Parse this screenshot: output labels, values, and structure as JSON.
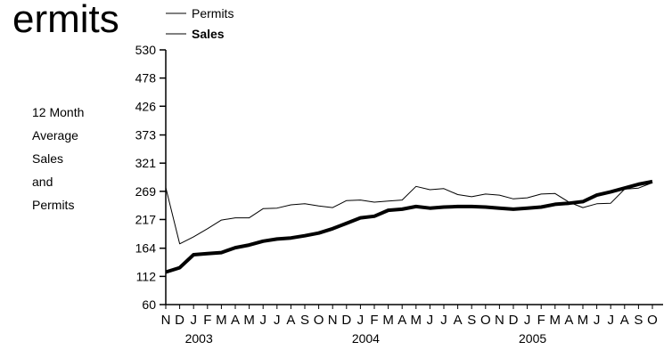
{
  "chart_data": {
    "type": "line",
    "title": "ermits",
    "ylabel": [
      "12 Month",
      "Average",
      "Sales",
      "and",
      "Permits"
    ],
    "ylim": [
      60,
      530
    ],
    "yticks": [
      60,
      112,
      164,
      217,
      269,
      321,
      373,
      426,
      478,
      530
    ],
    "categories": [
      "N",
      "D",
      "J",
      "F",
      "M",
      "A",
      "M",
      "J",
      "J",
      "A",
      "S",
      "O",
      "N",
      "D",
      "J",
      "F",
      "M",
      "A",
      "M",
      "J",
      "J",
      "A",
      "S",
      "O",
      "N",
      "D",
      "J",
      "F",
      "M",
      "A",
      "M",
      "J",
      "J",
      "A",
      "S",
      "O"
    ],
    "year_labels": [
      {
        "label": "2003",
        "index": 2
      },
      {
        "label": "2004",
        "index": 14
      },
      {
        "label": "2005",
        "index": 26
      }
    ],
    "legend": [
      {
        "name": "Permits",
        "bold": false
      },
      {
        "name": "Sales",
        "bold": true
      }
    ],
    "grid": false,
    "series": [
      {
        "name": "Permits",
        "color": "#000000",
        "values": [
          276,
          172,
          185,
          200,
          216,
          220,
          220,
          237,
          238,
          244,
          246,
          242,
          239,
          252,
          253,
          249,
          251,
          253,
          278,
          272,
          274,
          263,
          259,
          264,
          262,
          255,
          257,
          264,
          265,
          249,
          239,
          246,
          247,
          273,
          275,
          285
        ]
      },
      {
        "name": "Sales",
        "color": "#000000",
        "values": [
          120,
          128,
          152,
          154,
          156,
          165,
          170,
          177,
          181,
          183,
          187,
          192,
          200,
          210,
          220,
          223,
          234,
          236,
          241,
          238,
          240,
          241,
          241,
          240,
          238,
          236,
          238,
          240,
          245,
          247,
          250,
          262,
          268,
          275,
          282,
          287
        ]
      }
    ]
  }
}
